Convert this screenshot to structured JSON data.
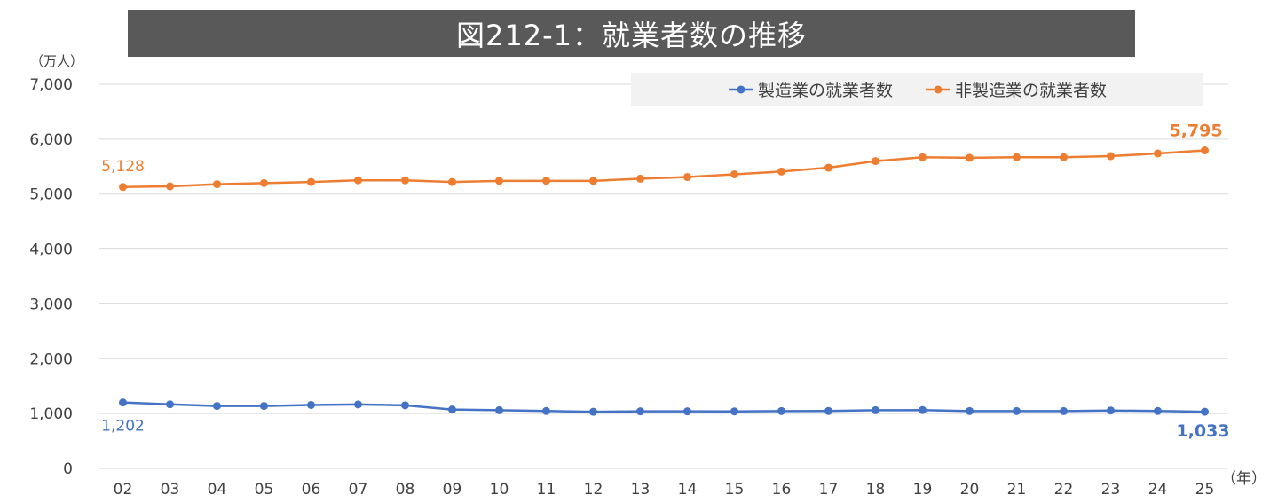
{
  "title": "図212-1：就業者数の推移",
  "unit_label": "（万人）",
  "x_unit_label": "（年）",
  "legend": {
    "series_0": "製造業の就業者数",
    "series_1": "非製造業の就業者数"
  },
  "colors": {
    "manufacturing": "#4472c4",
    "non_manufacturing": "#ed7d31",
    "grid": "#d9d9d9",
    "axis_text": "#404040",
    "title_bg": "#595959"
  },
  "chart_data": {
    "type": "line",
    "title": "図212-1：就業者数の推移",
    "ylabel": "（万人）",
    "xlabel": "（年）",
    "ylim": [
      0,
      7000
    ],
    "yticks": [
      0,
      1000,
      2000,
      3000,
      4000,
      5000,
      6000,
      7000
    ],
    "ytick_labels": [
      "0",
      "1,000",
      "2,000",
      "3,000",
      "4,000",
      "5,000",
      "6,000",
      "7,000"
    ],
    "grid": true,
    "legend_position": "top-right",
    "categories": [
      "02",
      "03",
      "04",
      "05",
      "06",
      "07",
      "08",
      "09",
      "10",
      "11",
      "12",
      "13",
      "14",
      "15",
      "16",
      "17",
      "18",
      "19",
      "20",
      "21",
      "22",
      "23",
      "24",
      "25"
    ],
    "series": [
      {
        "name": "製造業の就業者数",
        "color": "#4472c4",
        "values": [
          1202,
          1168,
          1138,
          1138,
          1156,
          1166,
          1150,
          1073,
          1060,
          1046,
          1032,
          1040,
          1040,
          1039,
          1045,
          1046,
          1060,
          1063,
          1045,
          1045,
          1044,
          1055,
          1046,
          1033
        ]
      },
      {
        "name": "非製造業の就業者数",
        "color": "#ed7d31",
        "values": [
          5128,
          5140,
          5180,
          5200,
          5220,
          5250,
          5250,
          5220,
          5240,
          5240,
          5240,
          5280,
          5310,
          5360,
          5410,
          5480,
          5600,
          5670,
          5660,
          5670,
          5670,
          5690,
          5740,
          5795
        ]
      }
    ],
    "data_labels": {
      "series_0_first": "1,202",
      "series_0_last": "1,033",
      "series_1_first": "5,128",
      "series_1_last": "5,795"
    }
  }
}
